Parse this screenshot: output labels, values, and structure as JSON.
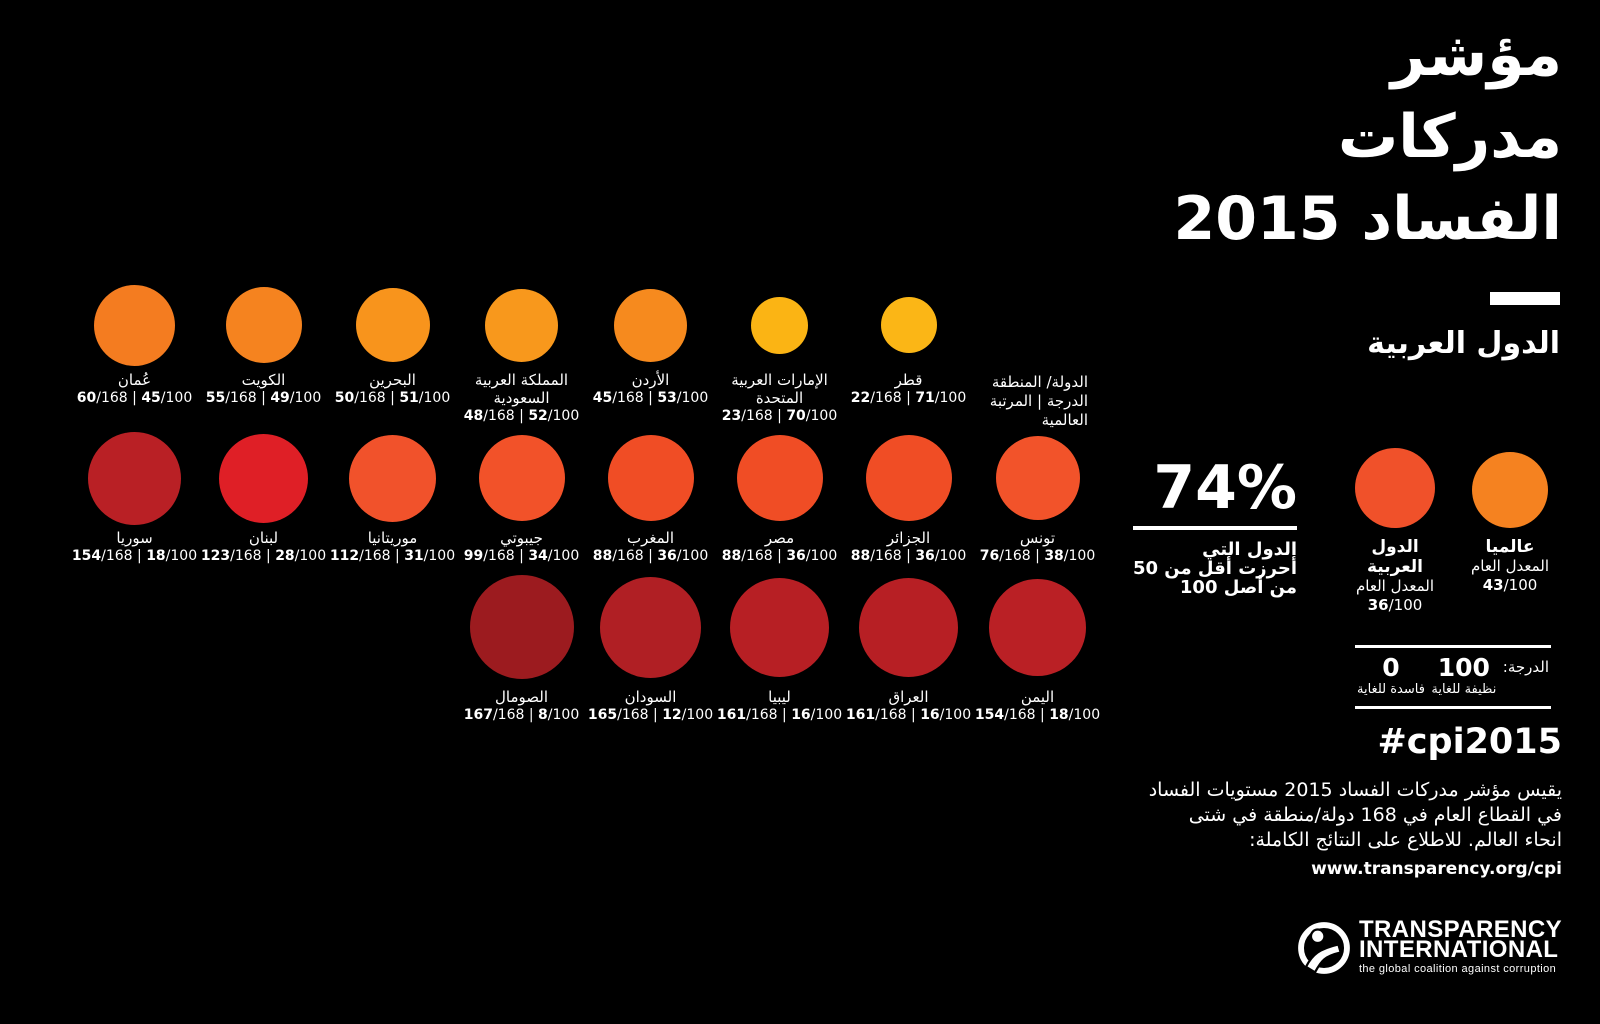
{
  "header": {
    "title_lines": [
      "مؤشر",
      "مدركات",
      "الفساد 2015"
    ],
    "subtitle": "الدول العربية"
  },
  "legend": {
    "lines": [
      "الدولة/ المنطقة",
      "الدرجة | المرتبة",
      "العالمية"
    ]
  },
  "labels": {
    "rank_total": "/168",
    "separator": " | ",
    "score_total": "/100"
  },
  "rows": [
    {
      "items": [
        {
          "name": "عُمان",
          "rank": "60",
          "score": "45",
          "size": 81,
          "color": "#F47C20"
        },
        {
          "name": "الكويت",
          "rank": "55",
          "score": "49",
          "size": 76,
          "color": "#F5831F"
        },
        {
          "name": "البحرين",
          "rank": "50",
          "score": "51",
          "size": 74,
          "color": "#F8941C"
        },
        {
          "name": "المملكة العربية السعودية",
          "rank": "48",
          "score": "52",
          "size": 73,
          "color": "#F8981C"
        },
        {
          "name": "الأردن",
          "rank": "45",
          "score": "53",
          "size": 73,
          "color": "#F68A1E"
        },
        {
          "name": "الإمارات العربية المتحدة",
          "rank": "23",
          "score": "70",
          "size": 57,
          "color": "#FBB414"
        },
        {
          "name": "قطر",
          "rank": "22",
          "score": "71",
          "size": 56,
          "color": "#FBB616"
        }
      ]
    },
    {
      "items": [
        {
          "name": "سوريا",
          "rank": "154",
          "score": "18",
          "size": 93,
          "color": "#B92025"
        },
        {
          "name": "لبنان",
          "rank": "123",
          "score": "28",
          "size": 89,
          "color": "#DF1F26"
        },
        {
          "name": "موريتانيا",
          "rank": "112",
          "score": "31",
          "size": 87,
          "color": "#F1522B"
        },
        {
          "name": "جيبوتي",
          "rank": "99",
          "score": "34",
          "size": 86,
          "color": "#F25229"
        },
        {
          "name": "المغرب",
          "rank": "88",
          "score": "36",
          "size": 86,
          "color": "#F04D25"
        },
        {
          "name": "مصر",
          "rank": "88",
          "score": "36",
          "size": 86,
          "color": "#F04D25"
        },
        {
          "name": "الجزائر",
          "rank": "88",
          "score": "36",
          "size": 86,
          "color": "#F04D25"
        },
        {
          "name": "تونس",
          "rank": "76",
          "score": "38",
          "size": 84,
          "color": "#F2532A"
        }
      ]
    },
    {
      "items": [
        {
          "name": "الصومال",
          "rank": "167",
          "score": "8",
          "size": 104,
          "color": "#9C1B1F"
        },
        {
          "name": "السودان",
          "rank": "165",
          "score": "12",
          "size": 101,
          "color": "#B01F24"
        },
        {
          "name": "ليبيا",
          "rank": "161",
          "score": "16",
          "size": 99,
          "color": "#B71F24"
        },
        {
          "name": "العراق",
          "rank": "161",
          "score": "16",
          "size": 99,
          "color": "#B71F24"
        },
        {
          "name": "اليمن",
          "rank": "154",
          "score": "18",
          "size": 97,
          "color": "#BA2025"
        }
      ]
    }
  ],
  "stat": {
    "value": "74%",
    "lines": [
      "الدول التي",
      "أحرزت أقل من 50",
      "من أصل 100"
    ]
  },
  "avgs": [
    {
      "name": "الدول العربية",
      "sub": "المعدل العام",
      "score": "36",
      "size": 80,
      "color": "#F0512A"
    },
    {
      "name": "عالميا",
      "sub": "المعدل العام",
      "score": "43",
      "size": 76,
      "color": "#F58220"
    }
  ],
  "scale": {
    "label": "الدرجة:",
    "max": "100",
    "max_caption": "نظيفة للغاية",
    "min": "0",
    "min_caption": "فاسدة للغاية"
  },
  "hashtag": "#cpi2015",
  "desc": {
    "lines": [
      "يقيس مؤشر مدركات الفساد 2015 مستويات الفساد",
      "في القطاع العام في 168 دولة/منطقة في شتى",
      "انحاء العالم. للاطلاع على النتائج الكاملة:"
    ],
    "url": "www.transparency.org/cpi"
  },
  "logo": {
    "line1": "TRANSPARENCY",
    "line2": "INTERNATIONAL",
    "tagline": "the global coalition against corruption"
  },
  "chart_data": {
    "type": "table",
    "title": "مؤشر مدركات الفساد 2015 — الدول العربية",
    "columns": [
      "country",
      "rank_of_168",
      "score_of_100"
    ],
    "rows": [
      [
        "عُمان",
        60,
        45
      ],
      [
        "الكويت",
        55,
        49
      ],
      [
        "البحرين",
        50,
        51
      ],
      [
        "المملكة العربية السعودية",
        48,
        52
      ],
      [
        "الأردن",
        45,
        53
      ],
      [
        "الإمارات العربية المتحدة",
        23,
        70
      ],
      [
        "قطر",
        22,
        71
      ],
      [
        "سوريا",
        154,
        18
      ],
      [
        "لبنان",
        123,
        28
      ],
      [
        "موريتانيا",
        112,
        31
      ],
      [
        "جيبوتي",
        99,
        34
      ],
      [
        "المغرب",
        88,
        36
      ],
      [
        "مصر",
        88,
        36
      ],
      [
        "الجزائر",
        88,
        36
      ],
      [
        "تونس",
        76,
        38
      ],
      [
        "الصومال",
        167,
        8
      ],
      [
        "السودان",
        165,
        12
      ],
      [
        "ليبيا",
        161,
        16
      ],
      [
        "العراق",
        161,
        16
      ],
      [
        "اليمن",
        154,
        18
      ]
    ],
    "annotations": {
      "pct_countries_below_50": "74%",
      "arab_average_score": 36,
      "global_average_score": 43,
      "scale": {
        "0": "فاسدة للغاية",
        "100": "نظيفة للغاية"
      }
    }
  }
}
